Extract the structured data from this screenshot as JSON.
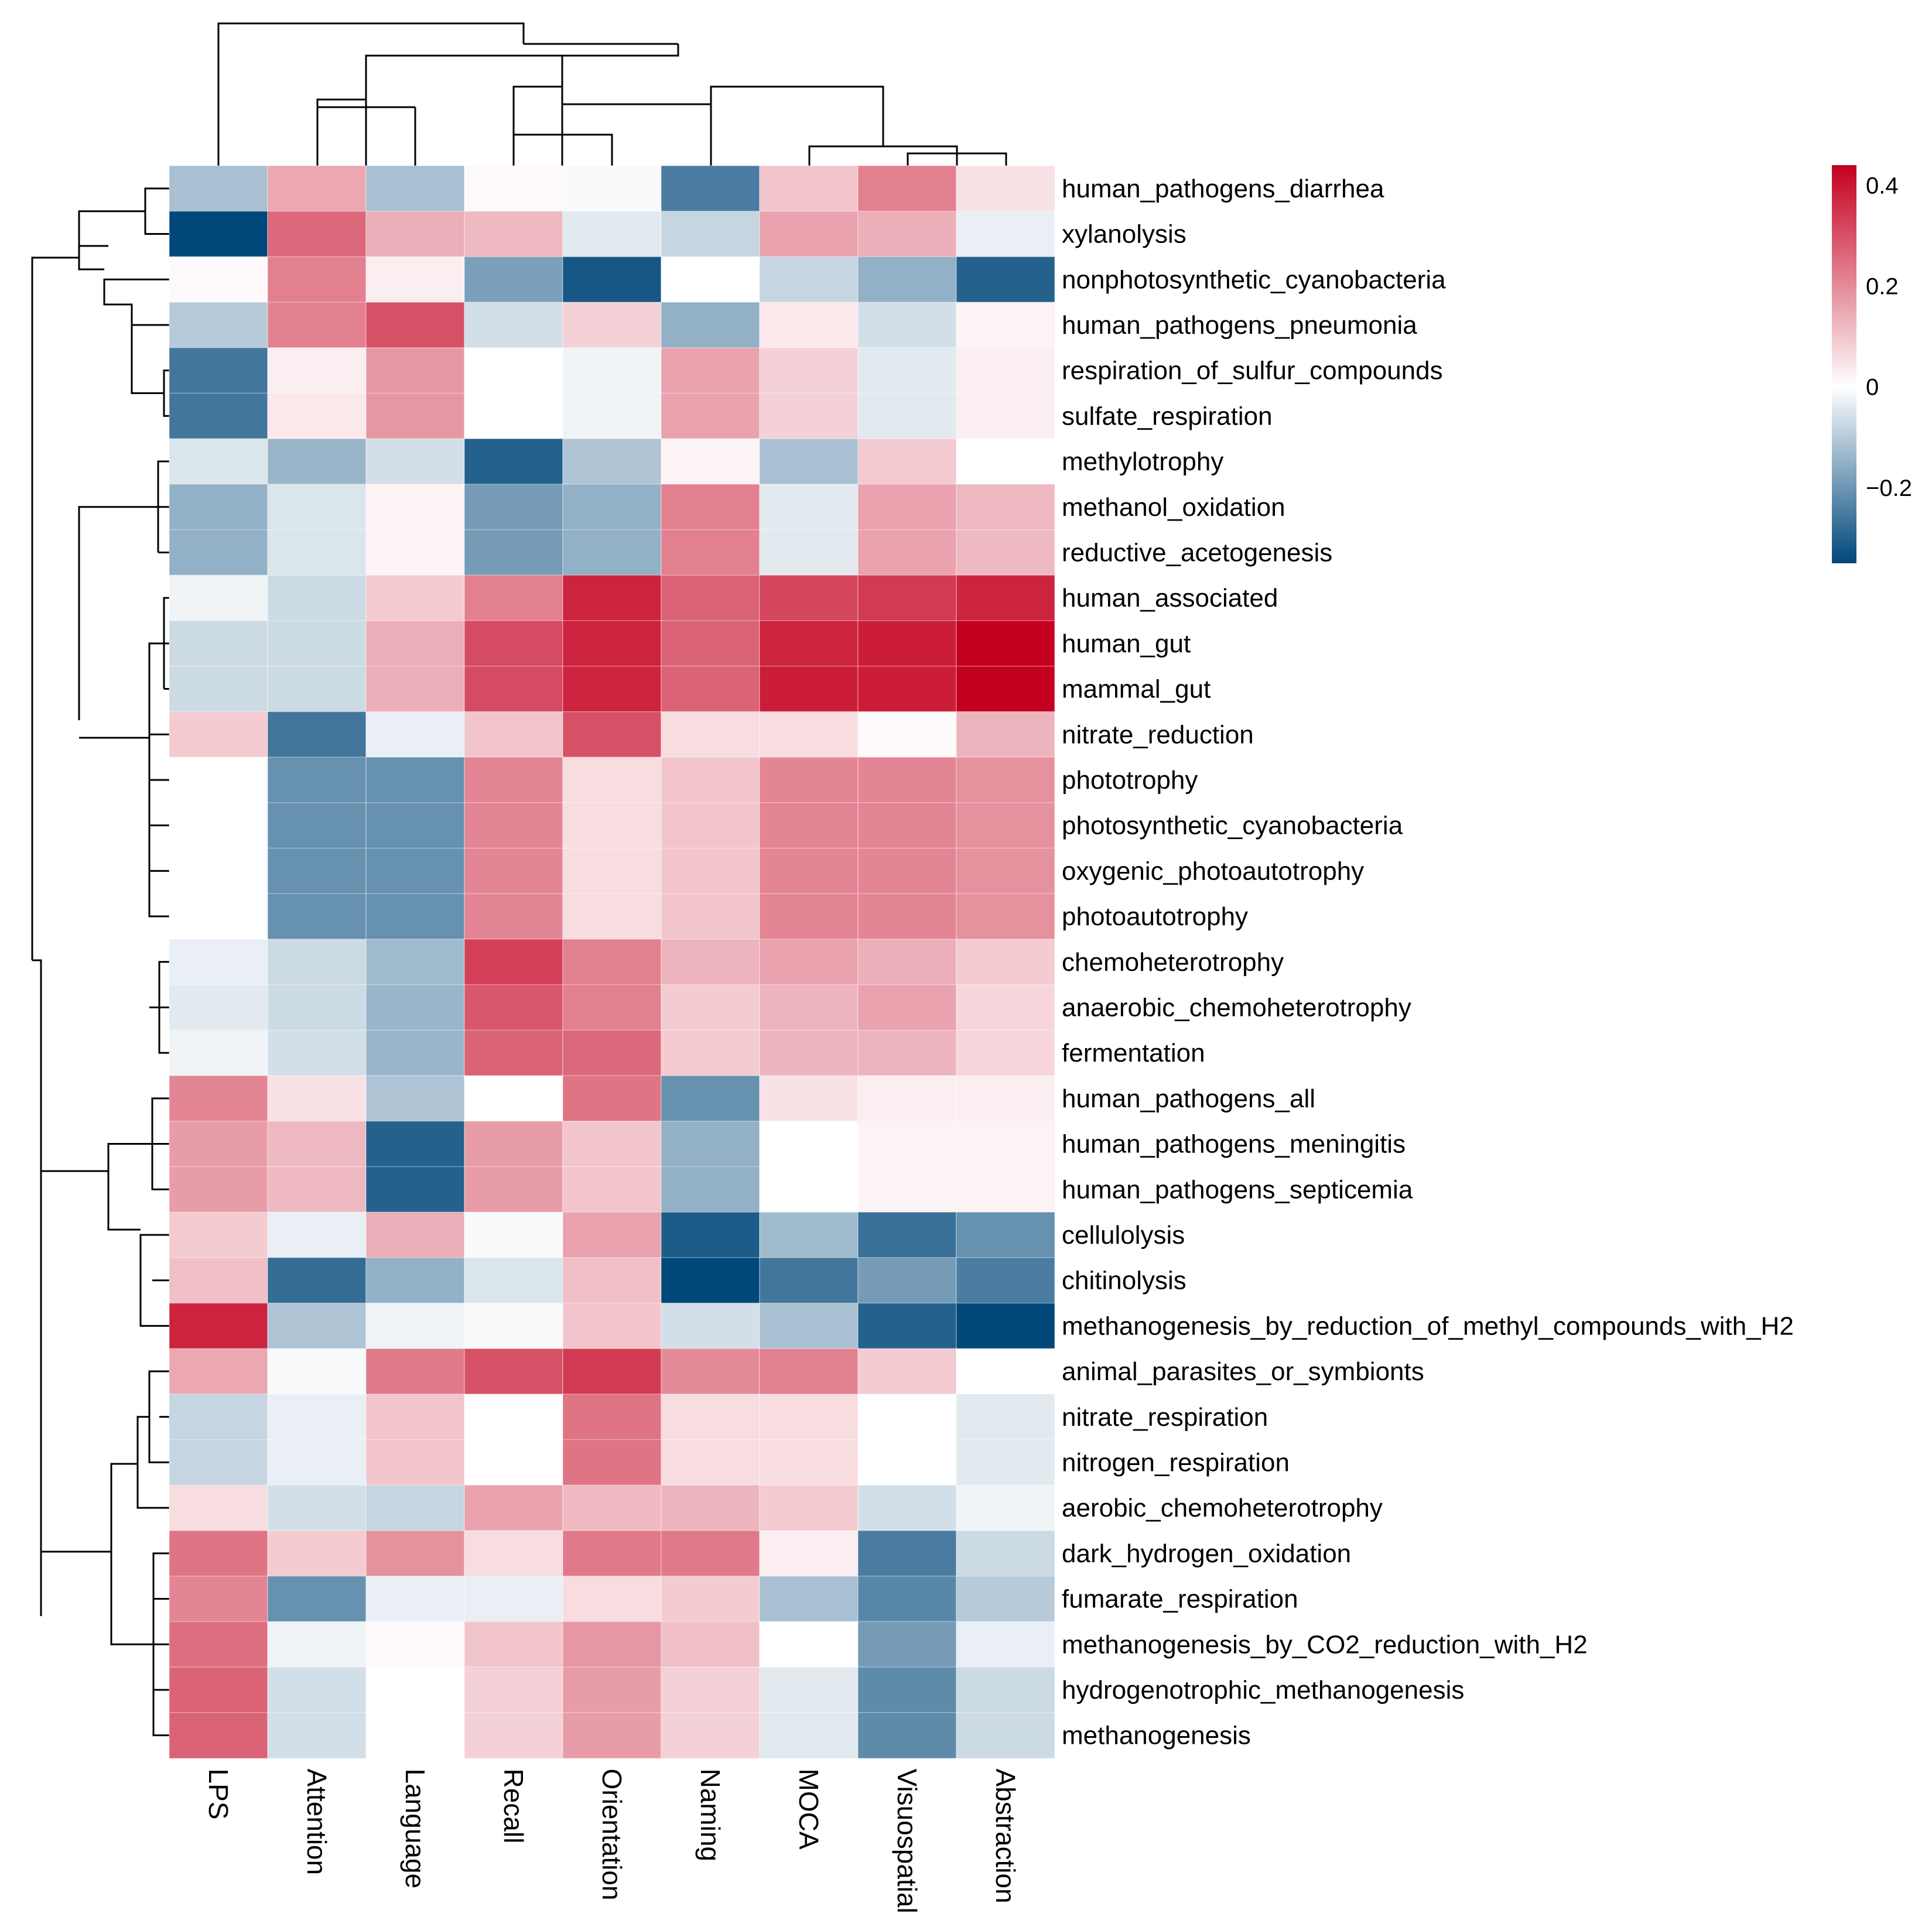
{
  "chart_data": {
    "type": "heatmap",
    "title": "",
    "columns": [
      "LPS",
      "Attention",
      "Language",
      "Recall",
      "Orientation",
      "Naming",
      "MOCA",
      "Visuospatial",
      "Abstraction"
    ],
    "rows": [
      "human_pathogens_diarrhea",
      "xylanolysis",
      "nonphotosynthetic_cyanobacteria",
      "human_pathogens_pneumonia",
      "respiration_of_sulfur_compounds",
      "sulfate_respiration",
      "methylotrophy",
      "methanol_oxidation",
      "reductive_acetogenesis",
      "human_associated",
      "human_gut",
      "mammal_gut",
      "nitrate_reduction",
      "phototrophy",
      "photosynthetic_cyanobacteria",
      "oxygenic_photoautotrophy",
      "photoautotrophy",
      "chemoheterotrophy",
      "anaerobic_chemoheterotrophy",
      "fermentation",
      "human_pathogens_all",
      "human_pathogens_meningitis",
      "human_pathogens_septicemia",
      "cellulolysis",
      "chitinolysis",
      "methanogenesis_by_reduction_of_methyl_compounds_with_H2",
      "animal_parasites_or_symbionts",
      "nitrate_respiration",
      "nitrogen_respiration",
      "aerobic_chemoheterotrophy",
      "dark_hydrogen_oxidation",
      "fumarate_respiration",
      "methanogenesis_by_CO2_reduction_with_H2",
      "hydrogenotrophic_methanogenesis",
      "methanogenesis"
    ],
    "values": [
      [
        -0.12,
        0.15,
        -0.12,
        0.01,
        -0.01,
        -0.25,
        0.1,
        0.22,
        0.05
      ],
      [
        -0.35,
        0.26,
        0.14,
        0.12,
        -0.04,
        -0.08,
        0.16,
        0.14,
        -0.03
      ],
      [
        0.01,
        0.22,
        0.03,
        -0.18,
        -0.32,
        0.0,
        -0.08,
        -0.15,
        -0.3
      ],
      [
        -0.1,
        0.22,
        0.3,
        -0.06,
        0.08,
        -0.15,
        0.04,
        -0.06,
        0.02
      ],
      [
        -0.26,
        0.03,
        0.18,
        0.0,
        -0.02,
        0.16,
        0.08,
        -0.04,
        0.03
      ],
      [
        -0.26,
        0.04,
        0.18,
        0.0,
        -0.02,
        0.16,
        0.08,
        -0.04,
        0.03
      ],
      [
        -0.05,
        -0.14,
        -0.06,
        -0.3,
        -0.11,
        0.02,
        -0.12,
        0.09,
        0.0
      ],
      [
        -0.15,
        -0.05,
        0.02,
        -0.19,
        -0.15,
        0.22,
        -0.04,
        0.16,
        0.12
      ],
      [
        -0.15,
        -0.05,
        0.02,
        -0.19,
        -0.15,
        0.22,
        -0.04,
        0.16,
        0.12
      ],
      [
        -0.02,
        -0.07,
        0.09,
        0.22,
        0.38,
        0.27,
        0.32,
        0.34,
        0.38
      ],
      [
        -0.07,
        -0.07,
        0.14,
        0.31,
        0.38,
        0.27,
        0.38,
        0.39,
        0.44
      ],
      [
        -0.07,
        -0.07,
        0.14,
        0.31,
        0.38,
        0.27,
        0.39,
        0.39,
        0.44
      ],
      [
        0.09,
        -0.26,
        -0.03,
        0.1,
        0.3,
        0.06,
        0.06,
        0.01,
        0.13
      ],
      [
        0.0,
        -0.21,
        -0.21,
        0.21,
        0.06,
        0.1,
        0.21,
        0.21,
        0.19
      ],
      [
        0.0,
        -0.21,
        -0.21,
        0.21,
        0.06,
        0.1,
        0.21,
        0.21,
        0.19
      ],
      [
        0.0,
        -0.21,
        -0.21,
        0.21,
        0.06,
        0.1,
        0.21,
        0.21,
        0.19
      ],
      [
        0.0,
        -0.21,
        -0.21,
        0.21,
        0.06,
        0.1,
        0.21,
        0.21,
        0.19
      ],
      [
        -0.03,
        -0.07,
        -0.13,
        0.33,
        0.22,
        0.13,
        0.16,
        0.14,
        0.09
      ],
      [
        -0.04,
        -0.07,
        -0.14,
        0.29,
        0.22,
        0.09,
        0.13,
        0.16,
        0.07
      ],
      [
        -0.02,
        -0.06,
        -0.14,
        0.27,
        0.26,
        0.09,
        0.13,
        0.13,
        0.07
      ],
      [
        0.21,
        0.05,
        -0.11,
        0.0,
        0.24,
        -0.21,
        0.05,
        0.03,
        0.03
      ],
      [
        0.17,
        0.12,
        -0.3,
        0.17,
        0.1,
        -0.15,
        0.0,
        0.02,
        0.02
      ],
      [
        0.17,
        0.12,
        -0.3,
        0.17,
        0.1,
        -0.15,
        0.0,
        0.02,
        0.02
      ],
      [
        0.09,
        -0.03,
        0.14,
        -0.01,
        0.16,
        -0.31,
        -0.13,
        -0.27,
        -0.21
      ],
      [
        0.11,
        -0.28,
        -0.15,
        -0.05,
        0.11,
        -0.35,
        -0.26,
        -0.19,
        -0.25
      ],
      [
        0.38,
        -0.11,
        -0.02,
        -0.01,
        0.1,
        -0.06,
        -0.12,
        -0.3,
        -0.37
      ],
      [
        0.15,
        -0.01,
        0.23,
        0.3,
        0.34,
        0.2,
        0.22,
        0.09,
        0.0
      ],
      [
        -0.08,
        -0.03,
        0.1,
        0.0,
        0.24,
        0.06,
        0.06,
        0.0,
        -0.04
      ],
      [
        -0.08,
        -0.03,
        0.1,
        0.0,
        0.24,
        0.06,
        0.06,
        0.0,
        -0.04
      ],
      [
        0.06,
        -0.06,
        -0.08,
        0.16,
        0.12,
        0.13,
        0.09,
        -0.06,
        -0.02
      ],
      [
        0.24,
        0.09,
        0.19,
        0.06,
        0.23,
        0.23,
        0.03,
        -0.25,
        -0.07
      ],
      [
        0.21,
        -0.21,
        -0.03,
        -0.03,
        0.06,
        0.09,
        -0.12,
        -0.23,
        -0.1
      ],
      [
        0.25,
        -0.02,
        0.01,
        0.1,
        0.18,
        0.11,
        0.0,
        -0.19,
        -0.03
      ],
      [
        0.27,
        -0.06,
        0.0,
        0.08,
        0.17,
        0.08,
        -0.04,
        -0.22,
        -0.07
      ],
      [
        0.27,
        -0.06,
        0.0,
        0.08,
        0.17,
        0.08,
        -0.04,
        -0.22,
        -0.07
      ]
    ],
    "scale": {
      "min": -0.35,
      "max": 0.44,
      "low_color": "#00477a",
      "mid_color": "#ffffff",
      "high_color": "#c4001f",
      "ticks": [
        0.4,
        0.2,
        0,
        -0.2
      ],
      "tick_labels": [
        "0.4",
        "0.2",
        "0",
        "−0.2"
      ]
    },
    "legend_position": "top-right",
    "row_dendrogram": true,
    "column_dendrogram": true
  }
}
